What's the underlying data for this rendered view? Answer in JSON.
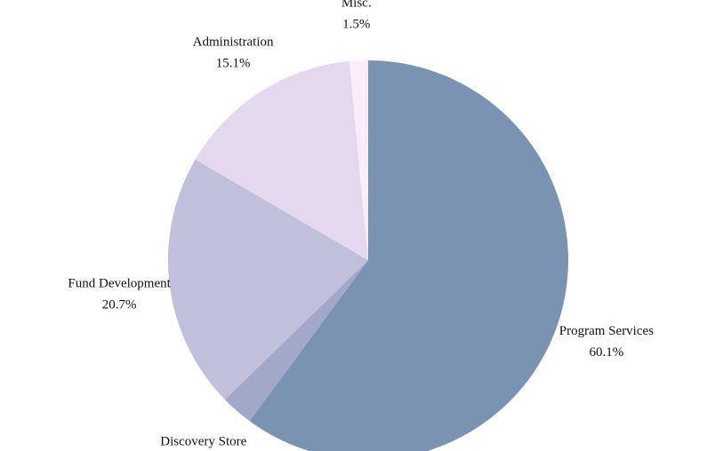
{
  "chart_data": {
    "type": "pie",
    "title": "",
    "start_angle_deg": 0,
    "direction": "clockwise",
    "slices": [
      {
        "label": "Program Services",
        "value": 60.1,
        "value_label": "60.1%",
        "color": "#7a93b2"
      },
      {
        "label": "Discovery Store",
        "value": 2.6,
        "value_label": "2.6%",
        "color": "#a2a8c8"
      },
      {
        "label": "Fund Development",
        "value": 20.7,
        "value_label": "20.7%",
        "color": "#c1c0da"
      },
      {
        "label": "Administration",
        "value": 15.1,
        "value_label": "15.1%",
        "color": "#e3d8ee"
      },
      {
        "label": "Misc.",
        "value": 1.5,
        "value_label": "1.5%",
        "color": "#fbeefa"
      }
    ]
  }
}
